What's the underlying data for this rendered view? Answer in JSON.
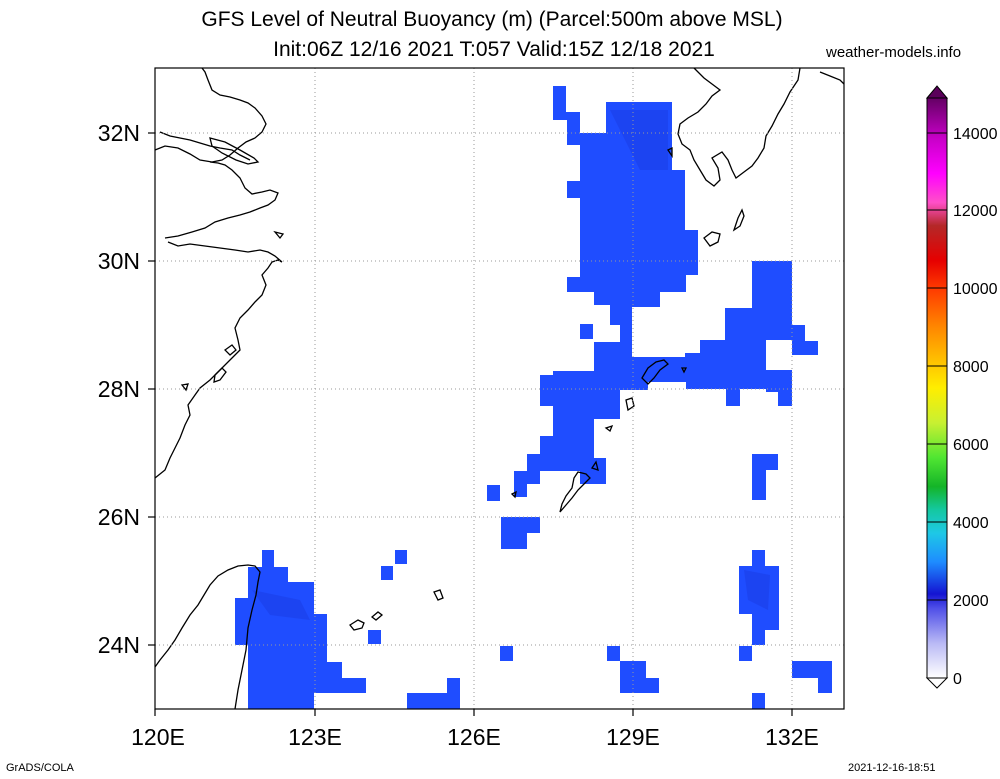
{
  "title_line1": "GFS Level of Neutral Buoyancy (m) (Parcel:500m above MSL)",
  "title_line2": "Init:06Z 12/16 2021 T:057 Valid:15Z 12/18 2021",
  "site": "weather-models.info",
  "footer_left": "GrADS/COLA",
  "footer_right": "2021-12-16-18:51",
  "lat_labels": [
    "32N",
    "30N",
    "28N",
    "26N",
    "24N"
  ],
  "lon_labels": [
    "120E",
    "123E",
    "126E",
    "129E",
    "132E"
  ],
  "colorbar_labels": [
    "0",
    "2000",
    "4000",
    "6000",
    "8000",
    "10000",
    "12000",
    "14000"
  ],
  "colors": {
    "buoyancy_fill": "#1f4dff",
    "buoyancy_dark": "#1a3fe8",
    "coast": "#000000",
    "grid": "#aaaaaa"
  }
}
